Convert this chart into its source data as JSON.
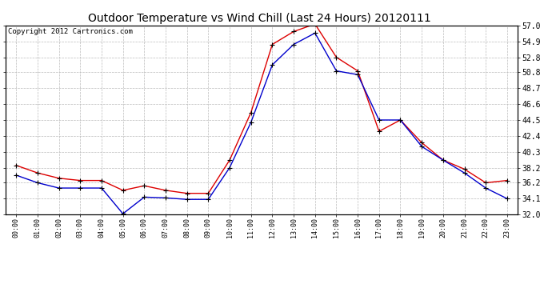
{
  "title": "Outdoor Temperature vs Wind Chill (Last 24 Hours) 20120111",
  "copyright": "Copyright 2012 Cartronics.com",
  "background_color": "#ffffff",
  "plot_background": "#ffffff",
  "grid_color": "#bbbbbb",
  "hours": [
    "00:00",
    "01:00",
    "02:00",
    "03:00",
    "04:00",
    "05:00",
    "06:00",
    "07:00",
    "08:00",
    "09:00",
    "10:00",
    "11:00",
    "12:00",
    "13:00",
    "14:00",
    "15:00",
    "16:00",
    "17:00",
    "18:00",
    "19:00",
    "20:00",
    "21:00",
    "22:00",
    "23:00"
  ],
  "temp_red": [
    38.5,
    37.5,
    36.8,
    36.5,
    36.5,
    35.2,
    35.8,
    35.2,
    34.8,
    34.8,
    39.2,
    45.5,
    54.5,
    56.2,
    57.2,
    52.8,
    51.0,
    43.0,
    44.5,
    41.5,
    39.2,
    38.0,
    36.2,
    36.5
  ],
  "windchill_blue": [
    37.2,
    36.2,
    35.5,
    35.5,
    35.5,
    32.1,
    34.3,
    34.2,
    34.0,
    34.0,
    38.2,
    44.2,
    51.8,
    54.5,
    56.0,
    51.0,
    50.5,
    44.5,
    44.5,
    41.0,
    39.2,
    37.5,
    35.5,
    34.1
  ],
  "ylim_min": 32.0,
  "ylim_max": 57.0,
  "yticks": [
    32.0,
    34.1,
    36.2,
    38.2,
    40.3,
    42.4,
    44.5,
    46.6,
    48.7,
    50.8,
    52.8,
    54.9,
    57.0
  ],
  "red_color": "#dd0000",
  "blue_color": "#0000cc",
  "marker_edge_color": "#000000",
  "title_fontsize": 10,
  "copyright_fontsize": 6.5,
  "tick_fontsize": 7,
  "xtick_fontsize": 6
}
